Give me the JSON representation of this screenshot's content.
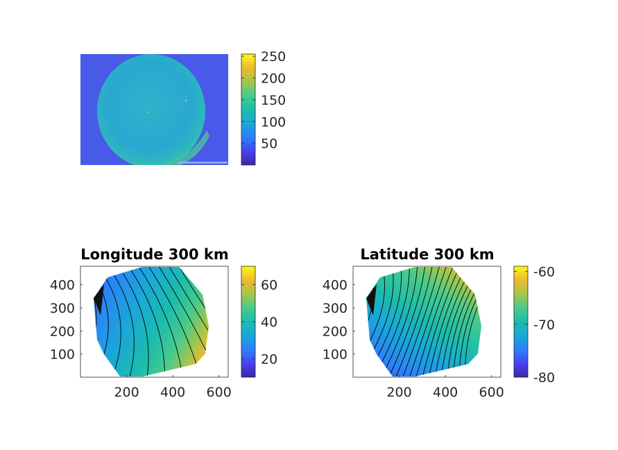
{
  "colors": {
    "parula": [
      "#3E26A8",
      "#4743F0",
      "#2D7FFA",
      "#1AA8D8",
      "#1CBCAC",
      "#48CA8D",
      "#A6C64A",
      "#EEBA30",
      "#F9FB15"
    ],
    "contour_line": "#000000",
    "axis": "#262626"
  },
  "chart_data": [
    {
      "type": "heatmap",
      "name": "raw-image",
      "title": "",
      "description_values": {
        "background_level": 60,
        "disk_level": 115,
        "bright_edge_level": 150
      },
      "colorbar": {
        "range": [
          0,
          255
        ],
        "ticks": [
          "50",
          "100",
          "150",
          "200",
          "250"
        ],
        "tick_values": [
          50,
          100,
          150,
          200,
          250
        ]
      },
      "axes_visible": false
    },
    {
      "type": "heatmap",
      "name": "longitude",
      "title": "Longitude 300 km",
      "xlim": [
        0,
        640
      ],
      "ylim": [
        0,
        480
      ],
      "xticks": [
        "200",
        "400",
        "600"
      ],
      "xtick_values": [
        200,
        400,
        600
      ],
      "yticks": [
        "100",
        "200",
        "300",
        "400"
      ],
      "ytick_values": [
        100,
        200,
        300,
        400
      ],
      "colorbar": {
        "range": [
          10,
          70
        ],
        "ticks": [
          "20",
          "40",
          "60"
        ],
        "tick_values": [
          20,
          40,
          60
        ]
      },
      "field": {
        "at_left": 12,
        "at_right": 68,
        "at_center": 38
      },
      "contour_levels": [
        12,
        16,
        20,
        24,
        28,
        32,
        36,
        40,
        44,
        48,
        52,
        56,
        60,
        64,
        68
      ]
    },
    {
      "type": "heatmap",
      "name": "latitude",
      "title": "Latitude 300 km",
      "xlim": [
        0,
        640
      ],
      "ylim": [
        0,
        480
      ],
      "xticks": [
        "200",
        "400",
        "600"
      ],
      "xtick_values": [
        200,
        400,
        600
      ],
      "yticks": [
        "100",
        "200",
        "300",
        "400"
      ],
      "ytick_values": [
        100,
        200,
        300,
        400
      ],
      "colorbar": {
        "range": [
          -80,
          -59
        ],
        "ticks": [
          "-60",
          "-70",
          "-80"
        ],
        "tick_values": [
          -60,
          -70,
          -80
        ]
      },
      "field": {
        "at_lower_left": -80,
        "at_upper_right": -60,
        "at_center": -70
      },
      "contour_levels": [
        -79,
        -78,
        -77,
        -76,
        -75,
        -74,
        -73,
        -72,
        -71,
        -70,
        -69,
        -68,
        -67,
        -66,
        -65,
        -64,
        -63,
        -62,
        -61
      ]
    }
  ]
}
